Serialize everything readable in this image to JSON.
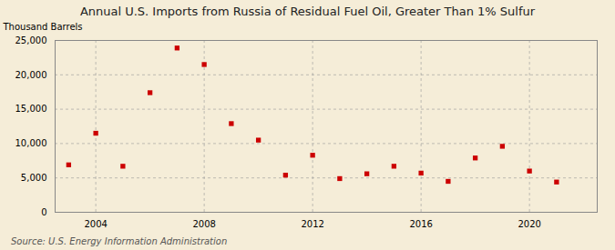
{
  "chart_data": {
    "type": "scatter",
    "title": "Annual U.S. Imports from Russia of Residual Fuel Oil, Greater Than 1% Sulfur",
    "ylabel": "Thousand Barrels",
    "source": "Source: U.S. Energy Information Administration",
    "x": [
      2003,
      2004,
      2005,
      2006,
      2007,
      2008,
      2009,
      2010,
      2011,
      2012,
      2013,
      2014,
      2015,
      2016,
      2017,
      2018,
      2019,
      2020,
      2021
    ],
    "values": [
      6900,
      11500,
      6700,
      17400,
      23900,
      21500,
      12900,
      10500,
      5400,
      8300,
      4900,
      5600,
      6700,
      5700,
      4500,
      7900,
      9600,
      6000,
      4400
    ],
    "color": "#cc0000",
    "marker": "square",
    "xlim": [
      2002.5,
      2022.5
    ],
    "ylim": [
      0,
      25000
    ],
    "xticks": [
      2004,
      2008,
      2012,
      2016,
      2020
    ],
    "yticks": [
      0,
      {
        "value": 5000,
        "label": "5,000"
      },
      {
        "value": 10000,
        "label": "10,000"
      },
      {
        "value": 15000,
        "label": "15,000"
      },
      {
        "value": 20000,
        "label": "20,000"
      },
      {
        "value": 25000,
        "label": "25,000"
      }
    ],
    "grid": true
  }
}
